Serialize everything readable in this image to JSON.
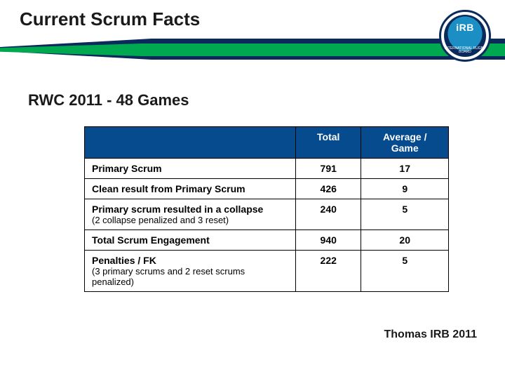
{
  "header": {
    "title": "Current Scrum Facts",
    "logo": {
      "abbrev": "iRB",
      "subtext": "INTERNATIONAL RUGBY BOARD",
      "ring_color": "#0a2a5c",
      "globe_color": "#1b8fc4",
      "band_color": "#0a2a5c",
      "text_color": "#ffffff"
    },
    "stripe_navy": "#0a2a5c",
    "stripe_green": "#00a84f"
  },
  "subtitle": "RWC 2011 - 48 Games",
  "table": {
    "header_bg": "#054b8e",
    "header_fg": "#ffffff",
    "border_color": "#000000",
    "columns": [
      "",
      "Total",
      "Average / Game"
    ],
    "rows": [
      {
        "label": "Primary Scrum",
        "note": "",
        "total": "791",
        "avg": "17"
      },
      {
        "label": "Clean result from Primary Scrum",
        "note": "",
        "total": "426",
        "avg": "9"
      },
      {
        "label": "Primary scrum resulted in a collapse",
        "note": "(2 collapse penalized and 3 reset)",
        "total": "240",
        "avg": "5"
      },
      {
        "label": "Total Scrum Engagement",
        "note": "",
        "total": "940",
        "avg": "20"
      },
      {
        "label": "Penalties / FK",
        "note": "(3 primary scrums and 2 reset scrums penalized)",
        "total": "222",
        "avg": "5"
      }
    ]
  },
  "credit": "Thomas IRB 2011"
}
